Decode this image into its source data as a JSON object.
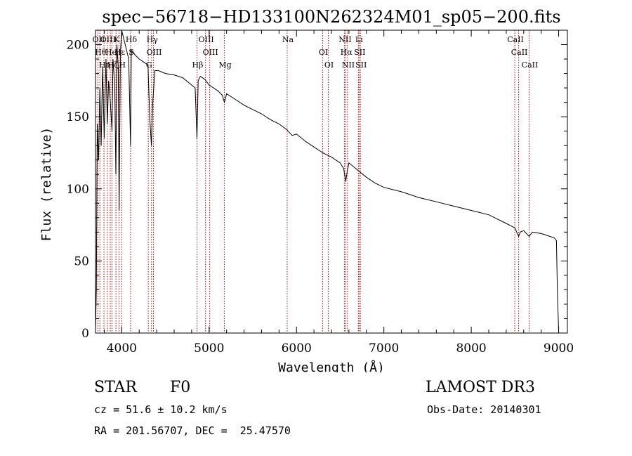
{
  "chart_data": {
    "type": "line",
    "title": "spec−56718−HD133100N262324M01_sp05−200.fits",
    "xlabel": "Wavelength (Å)",
    "ylabel": "Flux (relative)",
    "xlim": [
      3700,
      9100
    ],
    "ylim": [
      0,
      210
    ],
    "xticks": [
      4000,
      5000,
      6000,
      7000,
      8000,
      9000
    ],
    "yticks": [
      0,
      50,
      100,
      150,
      200
    ],
    "series": [
      {
        "name": "spectrum",
        "x": [
          3700,
          3710,
          3720,
          3735,
          3750,
          3765,
          3780,
          3800,
          3820,
          3835,
          3850,
          3870,
          3889,
          3900,
          3920,
          3933,
          3945,
          3960,
          3970,
          3985,
          4000,
          4020,
          4040,
          4060,
          4080,
          4101,
          4110,
          4130,
          4150,
          4200,
          4250,
          4300,
          4320,
          4340,
          4355,
          4380,
          4420,
          4500,
          4600,
          4700,
          4800,
          4840,
          4861,
          4875,
          4900,
          4950,
          5000,
          5100,
          5150,
          5175,
          5200,
          5300,
          5400,
          5500,
          5600,
          5700,
          5800,
          5890,
          5950,
          6000,
          6100,
          6200,
          6300,
          6400,
          6500,
          6540,
          6563,
          6580,
          6600,
          6700,
          6800,
          6900,
          7000,
          7200,
          7400,
          7600,
          7800,
          8000,
          8200,
          8400,
          8498,
          8520,
          8542,
          8560,
          8600,
          8662,
          8700,
          8800,
          8850,
          8900,
          8950,
          8975,
          8985,
          9000
        ],
        "values": [
          2,
          30,
          145,
          120,
          170,
          130,
          185,
          135,
          190,
          145,
          175,
          160,
          140,
          190,
          172,
          110,
          200,
          185,
          85,
          195,
          210,
          205,
          200,
          195,
          190,
          130,
          196,
          195,
          193,
          190,
          188,
          186,
          150,
          130,
          160,
          182,
          182,
          180,
          179,
          177,
          172,
          170,
          135,
          175,
          178,
          176,
          172,
          168,
          165,
          160,
          166,
          162,
          158,
          155,
          152,
          148,
          145,
          141,
          137,
          138,
          133,
          129,
          125,
          122,
          118,
          114,
          105,
          112,
          118,
          113,
          108,
          104,
          101,
          98,
          94,
          91,
          88,
          85,
          82,
          76,
          73,
          70,
          67,
          70,
          71,
          67,
          70,
          69,
          68,
          67,
          66,
          64,
          30,
          0
        ]
      }
    ],
    "lines": [
      {
        "x": 3727,
        "label": "OII"
      },
      {
        "x": 3750,
        "label": "Hθ"
      },
      {
        "x": 3797,
        "label": "Hη"
      },
      {
        "x": 3835,
        "label": "OIII"
      },
      {
        "x": 3869,
        "label": "He"
      },
      {
        "x": 3889,
        "label": "Hζ"
      },
      {
        "x": 3934,
        "label": "K"
      },
      {
        "x": 3970,
        "label": "Hε"
      },
      {
        "x": 4000,
        "label": "H"
      },
      {
        "x": 4102,
        "label": "Hδ"
      },
      {
        "x": 4102,
        "label": "S"
      },
      {
        "x": 4304,
        "label": "G"
      },
      {
        "x": 4341,
        "label": "Hγ"
      },
      {
        "x": 4363,
        "label": "OIII"
      },
      {
        "x": 4861,
        "label": "Hβ"
      },
      {
        "x": 4959,
        "label": "OIII"
      },
      {
        "x": 5007,
        "label": "OIII"
      },
      {
        "x": 5175,
        "label": "Mg"
      },
      {
        "x": 5893,
        "label": "Na"
      },
      {
        "x": 6300,
        "label": "OI"
      },
      {
        "x": 6364,
        "label": "OI"
      },
      {
        "x": 6548,
        "label": "NII"
      },
      {
        "x": 6563,
        "label": "Hα"
      },
      {
        "x": 6584,
        "label": "NII"
      },
      {
        "x": 6708,
        "label": "Li"
      },
      {
        "x": 6716,
        "label": "SII"
      },
      {
        "x": 6731,
        "label": "SII"
      },
      {
        "x": 8498,
        "label": "CaII"
      },
      {
        "x": 8542,
        "label": "CaII"
      },
      {
        "x": 8662,
        "label": "CaII"
      }
    ]
  },
  "info": {
    "class_label": "STAR",
    "subclass": "F0",
    "survey": "LAMOST DR3",
    "cz": "cz = 51.6 ± 10.2 km/s",
    "obs_date": "Obs-Date: 20140301",
    "coords": "RA = 201.56707, DEC =  25.47570"
  },
  "colors": {
    "spectrum": "#000000",
    "line_marker": "#cc0000"
  }
}
